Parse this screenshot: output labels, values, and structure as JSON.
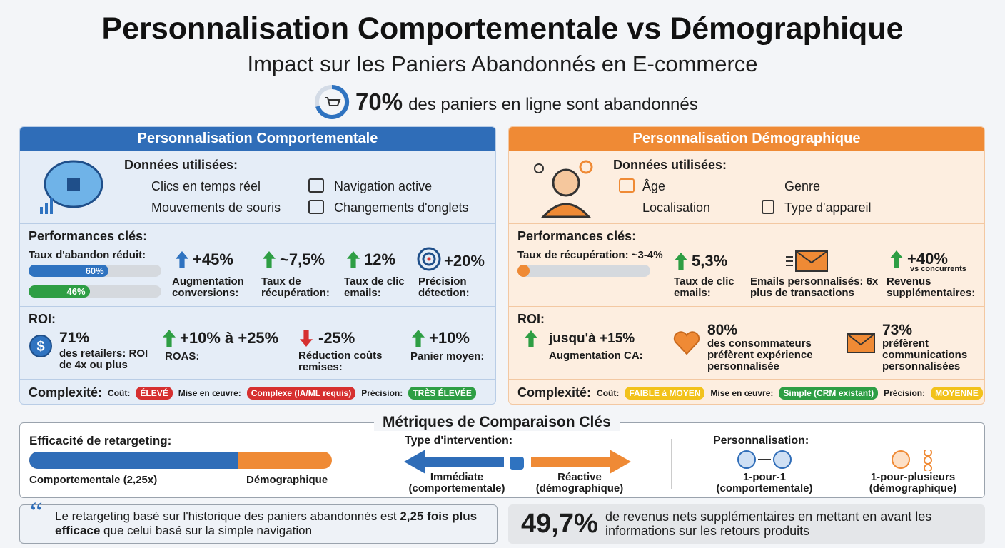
{
  "header": {
    "title": "Personnalisation Comportementale vs Démographique",
    "subtitle": "Impact sur les Paniers Abandonnés en E-commerce",
    "stat_value": "70%",
    "stat_text": "des paniers en ligne sont abandonnés"
  },
  "behavioral": {
    "title": "Personnalisation Comportementale",
    "data_heading": "Données utilisées:",
    "data_items": [
      "Clics en temps réel",
      "Navigation active",
      "Mouvements de souris",
      "Changements d'onglets"
    ],
    "perf_heading": "Performances clés:",
    "abandon_label": "Taux d'abandon réduit:",
    "bars": [
      {
        "label": "60%",
        "value": 60
      },
      {
        "label": "46%",
        "value": 46
      }
    ],
    "kpis": [
      {
        "value": "+45%",
        "label": "Augmentation conversions:"
      },
      {
        "value": "~7,5%",
        "label": "Taux de récupération:"
      },
      {
        "value": "12%",
        "label": "Taux de clic emails:"
      },
      {
        "value": "+20%",
        "label": "Précision détection:"
      }
    ],
    "roi_heading": "ROI:",
    "roi": [
      {
        "value": "71%",
        "label": "des retailers: ROI de 4x ou plus"
      },
      {
        "value": "+10% à +25%",
        "label": "ROAS:"
      },
      {
        "value": "-25%",
        "label": "Réduction coûts remises:"
      },
      {
        "value": "+10%",
        "label": "Panier moyen:"
      }
    ],
    "complexity": {
      "heading": "Complexité:",
      "items": [
        {
          "label": "Coût:",
          "badge": "ÉLEVÉ"
        },
        {
          "label": "Mise en œuvre:",
          "badge": "Complexe (IA/ML requis)"
        },
        {
          "label": "Précision:",
          "badge": "TRÈS ÉLEVÉE"
        }
      ]
    }
  },
  "demographic": {
    "title": "Personnalisation Démographique",
    "data_heading": "Données utilisées:",
    "data_items": [
      "Âge",
      "Genre",
      "Localisation",
      "Type d'appareil"
    ],
    "perf_heading": "Performances clés:",
    "recovery_label": "Taux de récupération: ~3-4%",
    "kpis": [
      {
        "value": "5,3%",
        "label": "Taux de clic emails:"
      },
      {
        "label": "Emails personnalisés: 6x plus de transactions"
      },
      {
        "value": "+40%",
        "note": "vs concurrents",
        "label": "Revenus supplémentaires:"
      }
    ],
    "roi_heading": "ROI:",
    "roi": [
      {
        "value": "jusqu'à +15%",
        "label": "Augmentation CA:"
      },
      {
        "value": "80%",
        "label": "des consommateurs préfèrent expérience personnalisée"
      },
      {
        "value": "73%",
        "label": "préfèrent communications personnalisées"
      }
    ],
    "complexity": {
      "heading": "Complexité:",
      "items": [
        {
          "label": "Coût:",
          "badge": "FAIBLE à MOYEN"
        },
        {
          "label": "Mise en œuvre:",
          "badge": "Simple (CRM existant)"
        },
        {
          "label": "Précision:",
          "badge": "MOYENNE"
        }
      ]
    }
  },
  "comparison": {
    "title": "Métriques de Comparaison Clés",
    "retargeting": {
      "heading": "Efficacité de retargeting:",
      "left": "Comportementale (2,25x)",
      "right": "Démographique"
    },
    "intervention": {
      "heading": "Type d'intervention:",
      "left": "Immédiate (comportementale)",
      "right": "Réactive (démographique)"
    },
    "personalization": {
      "heading": "Personnalisation:",
      "left": "1-pour-1 (comportementale)",
      "right": "1-pour-plusieurs (démographique)"
    }
  },
  "footer": {
    "quote_start": "Le retargeting basé sur l'historique des paniers abandonnés est ",
    "quote_bold": "2,25 fois plus efficace",
    "quote_end": " que celui basé sur la simple navigation",
    "stat_value": "49,7%",
    "stat_text": "de revenus nets supplémentaires en mettant en avant les informations sur les retours produits"
  }
}
